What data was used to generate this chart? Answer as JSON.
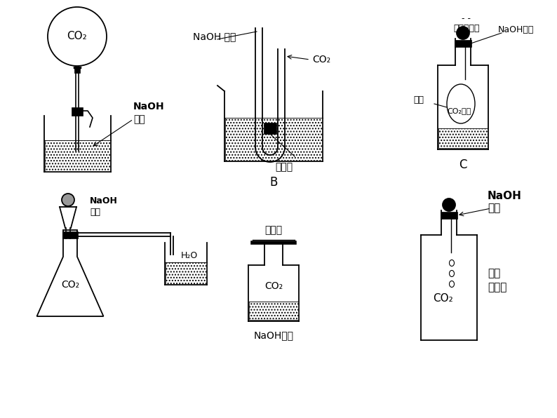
{
  "bg_color": "#ffffff",
  "line_color": "#000000",
  "texts": {
    "A_balloon": "CO₂",
    "A_label1": "NaOH",
    "A_label2": "溶液",
    "B_label1": "NaOH 溶液",
    "B_label2": "CO₂",
    "B_label3": "橡皮塞",
    "B_id": "B",
    "C_top": "- -",
    "C_label1": "与大气相通",
    "C_label2": "NaOH溶液",
    "C_label3": "气球",
    "C_label4": "CO₂气体",
    "C_id": "C",
    "D_label1": "NaOH",
    "D_label2": "溶液",
    "D_label3": "CO₂",
    "D_label4": "H₂O",
    "E_label1": "玻璃片",
    "E_label2": "CO₂",
    "E_label3": "NaOH溶液",
    "F_label1": "NaOH",
    "F_label2": "溶液",
    "F_label3": "塑料",
    "F_label4": "饮料瓶",
    "F_label5": "CO₂"
  }
}
